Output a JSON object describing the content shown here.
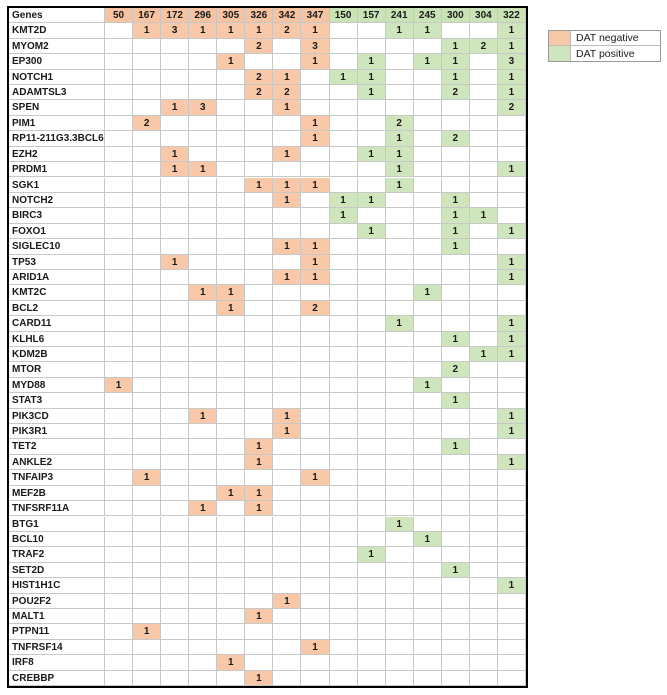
{
  "chart_data": {
    "type": "table",
    "gene_header": "Genes",
    "columns": [
      "50",
      "167",
      "172",
      "296",
      "305",
      "326",
      "342",
      "347",
      "150",
      "157",
      "241",
      "245",
      "300",
      "304",
      "322"
    ],
    "column_groups": [
      "neg",
      "neg",
      "neg",
      "neg",
      "neg",
      "neg",
      "neg",
      "neg",
      "pos",
      "pos",
      "pos",
      "pos",
      "pos",
      "pos",
      "pos"
    ],
    "rows": [
      {
        "gene": "KMT2D",
        "values": [
          "",
          "1",
          "3",
          "1",
          "1",
          "1",
          "2",
          "1",
          "",
          "",
          "1",
          "1",
          "",
          "",
          "1"
        ]
      },
      {
        "gene": "MYOM2",
        "values": [
          "",
          "",
          "",
          "",
          "",
          "2",
          "",
          "3",
          "",
          "",
          "",
          "",
          "1",
          "2",
          "1"
        ]
      },
      {
        "gene": "EP300",
        "values": [
          "",
          "",
          "",
          "",
          "1",
          "",
          "",
          "1",
          "",
          "1",
          "",
          "1",
          "1",
          "",
          "3"
        ]
      },
      {
        "gene": "NOTCH1",
        "values": [
          "",
          "",
          "",
          "",
          "",
          "2",
          "1",
          "",
          "1",
          "1",
          "",
          "",
          "1",
          "",
          "1"
        ]
      },
      {
        "gene": "ADAMTSL3",
        "values": [
          "",
          "",
          "",
          "",
          "",
          "2",
          "2",
          "",
          "",
          "1",
          "",
          "",
          "2",
          "",
          "1"
        ]
      },
      {
        "gene": "SPEN",
        "values": [
          "",
          "",
          "1",
          "3",
          "",
          "",
          "1",
          "",
          "",
          "",
          "",
          "",
          "",
          "",
          "2"
        ]
      },
      {
        "gene": "PIM1",
        "values": [
          "",
          "2",
          "",
          "",
          "",
          "",
          "",
          "1",
          "",
          "",
          "2",
          "",
          "",
          "",
          ""
        ]
      },
      {
        "gene": "RP11-211G3.3BCL6",
        "values": [
          "",
          "",
          "",
          "",
          "",
          "",
          "",
          "1",
          "",
          "",
          "1",
          "",
          "2",
          "",
          ""
        ]
      },
      {
        "gene": "EZH2",
        "values": [
          "",
          "",
          "1",
          "",
          "",
          "",
          "1",
          "",
          "",
          "1",
          "1",
          "",
          "",
          "",
          ""
        ]
      },
      {
        "gene": "PRDM1",
        "values": [
          "",
          "",
          "1",
          "1",
          "",
          "",
          "",
          "",
          "",
          "",
          "1",
          "",
          "",
          "",
          "1"
        ]
      },
      {
        "gene": "SGK1",
        "values": [
          "",
          "",
          "",
          "",
          "",
          "1",
          "1",
          "1",
          "",
          "",
          "1",
          "",
          "",
          "",
          ""
        ]
      },
      {
        "gene": "NOTCH2",
        "values": [
          "",
          "",
          "",
          "",
          "",
          "",
          "1",
          "",
          "1",
          "1",
          "",
          "",
          "1",
          "",
          ""
        ]
      },
      {
        "gene": "BIRC3",
        "values": [
          "",
          "",
          "",
          "",
          "",
          "",
          "",
          "",
          "1",
          "",
          "",
          "",
          "1",
          "1",
          ""
        ]
      },
      {
        "gene": "FOXO1",
        "values": [
          "",
          "",
          "",
          "",
          "",
          "",
          "",
          "",
          "",
          "1",
          "",
          "",
          "1",
          "",
          "1"
        ]
      },
      {
        "gene": "SIGLEC10",
        "values": [
          "",
          "",
          "",
          "",
          "",
          "",
          "1",
          "1",
          "",
          "",
          "",
          "",
          "1",
          "",
          ""
        ]
      },
      {
        "gene": "TP53",
        "values": [
          "",
          "",
          "1",
          "",
          "",
          "",
          "",
          "1",
          "",
          "",
          "",
          "",
          "",
          "",
          "1"
        ]
      },
      {
        "gene": "ARID1A",
        "values": [
          "",
          "",
          "",
          "",
          "",
          "",
          "1",
          "1",
          "",
          "",
          "",
          "",
          "",
          "",
          "1"
        ]
      },
      {
        "gene": "KMT2C",
        "values": [
          "",
          "",
          "",
          "1",
          "1",
          "",
          "",
          "",
          "",
          "",
          "",
          "1",
          "",
          "",
          ""
        ]
      },
      {
        "gene": "BCL2",
        "values": [
          "",
          "",
          "",
          "",
          "1",
          "",
          "",
          "2",
          "",
          "",
          "",
          "",
          "",
          "",
          ""
        ]
      },
      {
        "gene": "CARD11",
        "values": [
          "",
          "",
          "",
          "",
          "",
          "",
          "",
          "",
          "",
          "",
          "1",
          "",
          "",
          "",
          "1"
        ]
      },
      {
        "gene": "KLHL6",
        "values": [
          "",
          "",
          "",
          "",
          "",
          "",
          "",
          "",
          "",
          "",
          "",
          "",
          "1",
          "",
          "1"
        ]
      },
      {
        "gene": "KDM2B",
        "values": [
          "",
          "",
          "",
          "",
          "",
          "",
          "",
          "",
          "",
          "",
          "",
          "",
          "",
          "1",
          "1"
        ]
      },
      {
        "gene": "MTOR",
        "values": [
          "",
          "",
          "",
          "",
          "",
          "",
          "",
          "",
          "",
          "",
          "",
          "",
          "2",
          "",
          ""
        ]
      },
      {
        "gene": "MYD88",
        "values": [
          "1",
          "",
          "",
          "",
          "",
          "",
          "",
          "",
          "",
          "",
          "",
          "1",
          "",
          "",
          ""
        ]
      },
      {
        "gene": "STAT3",
        "values": [
          "",
          "",
          "",
          "",
          "",
          "",
          "",
          "",
          "",
          "",
          "",
          "",
          "1",
          "",
          ""
        ]
      },
      {
        "gene": "PIK3CD",
        "values": [
          "",
          "",
          "",
          "1",
          "",
          "",
          "1",
          "",
          "",
          "",
          "",
          "",
          "",
          "",
          "1"
        ]
      },
      {
        "gene": "PIK3R1",
        "values": [
          "",
          "",
          "",
          "",
          "",
          "",
          "1",
          "",
          "",
          "",
          "",
          "",
          "",
          "",
          "1"
        ]
      },
      {
        "gene": "TET2",
        "values": [
          "",
          "",
          "",
          "",
          "",
          "1",
          "",
          "",
          "",
          "",
          "",
          "",
          "1",
          "",
          ""
        ]
      },
      {
        "gene": "ANKLE2",
        "values": [
          "",
          "",
          "",
          "",
          "",
          "1",
          "",
          "",
          "",
          "",
          "",
          "",
          "",
          "",
          "1"
        ]
      },
      {
        "gene": "TNFAIP3",
        "values": [
          "",
          "1",
          "",
          "",
          "",
          "",
          "",
          "1",
          "",
          "",
          "",
          "",
          "",
          "",
          ""
        ]
      },
      {
        "gene": "MEF2B",
        "values": [
          "",
          "",
          "",
          "",
          "1",
          "1",
          "",
          "",
          "",
          "",
          "",
          "",
          "",
          "",
          ""
        ]
      },
      {
        "gene": "TNFSRF11A",
        "values": [
          "",
          "",
          "",
          "1",
          "",
          "1",
          "",
          "",
          "",
          "",
          "",
          "",
          "",
          "",
          ""
        ]
      },
      {
        "gene": "BTG1",
        "values": [
          "",
          "",
          "",
          "",
          "",
          "",
          "",
          "",
          "",
          "",
          "1",
          "",
          "",
          "",
          ""
        ]
      },
      {
        "gene": "BCL10",
        "values": [
          "",
          "",
          "",
          "",
          "",
          "",
          "",
          "",
          "",
          "",
          "",
          "1",
          "",
          "",
          ""
        ]
      },
      {
        "gene": "TRAF2",
        "values": [
          "",
          "",
          "",
          "",
          "",
          "",
          "",
          "",
          "",
          "1",
          "",
          "",
          "",
          "",
          ""
        ]
      },
      {
        "gene": "SET2D",
        "values": [
          "",
          "",
          "",
          "",
          "",
          "",
          "",
          "",
          "",
          "",
          "",
          "",
          "1",
          "",
          ""
        ]
      },
      {
        "gene": "HIST1H1C",
        "values": [
          "",
          "",
          "",
          "",
          "",
          "",
          "",
          "",
          "",
          "",
          "",
          "",
          "",
          "",
          "1"
        ]
      },
      {
        "gene": "POU2F2",
        "values": [
          "",
          "",
          "",
          "",
          "",
          "",
          "1",
          "",
          "",
          "",
          "",
          "",
          "",
          "",
          ""
        ]
      },
      {
        "gene": "MALT1",
        "values": [
          "",
          "",
          "",
          "",
          "",
          "1",
          "",
          "",
          "",
          "",
          "",
          "",
          "",
          "",
          ""
        ]
      },
      {
        "gene": "PTPN11",
        "values": [
          "",
          "1",
          "",
          "",
          "",
          "",
          "",
          "",
          "",
          "",
          "",
          "",
          "",
          "",
          ""
        ]
      },
      {
        "gene": "TNFRSF14",
        "values": [
          "",
          "",
          "",
          "",
          "",
          "",
          "",
          "1",
          "",
          "",
          "",
          "",
          "",
          "",
          ""
        ]
      },
      {
        "gene": "IRF8",
        "values": [
          "",
          "",
          "",
          "",
          "1",
          "",
          "",
          "",
          "",
          "",
          "",
          "",
          "",
          "",
          ""
        ]
      },
      {
        "gene": "CREBBP",
        "values": [
          "",
          "",
          "",
          "",
          "",
          "1",
          "",
          "",
          "",
          "",
          "",
          "",
          "",
          "",
          ""
        ]
      }
    ],
    "legend": [
      {
        "label": "DAT negative",
        "color": "#f8c8a8"
      },
      {
        "label": "DAT positive",
        "color": "#cfe6bd"
      }
    ],
    "legend_position": "top-right"
  }
}
